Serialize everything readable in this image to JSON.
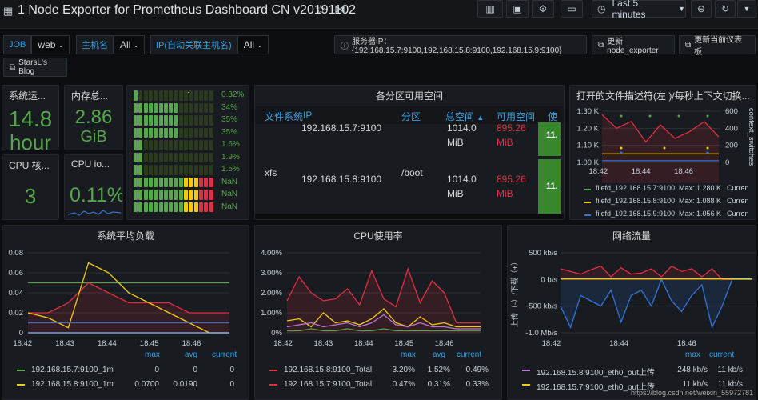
{
  "header": {
    "title": "1 Node Exporter for Prometheus Dashboard CN v20191102",
    "time_picker": "Last 5 minutes"
  },
  "variables": [
    {
      "label": "JOB",
      "value": "web"
    },
    {
      "label": "主机名",
      "value": "All"
    },
    {
      "label": "IP(自动关联主机名)",
      "value": "All"
    }
  ],
  "links": {
    "server_ip": "服务器IP：{192.168.15.7:9100,192.168.15.8:9100,192.168.15.9:9100}",
    "update_node_exporter": "更新node_exporter",
    "update_dashboard": "更新当前仪表板",
    "blog": "StarsL's Blog"
  },
  "stats": {
    "uptime": {
      "title": "系统运...",
      "value": "14.8",
      "unit": "hour"
    },
    "memory": {
      "title": "内存总...",
      "value": "2.86",
      "unit": "GiB"
    },
    "cpu_cores": {
      "title": "CPU 核...",
      "value": "3"
    },
    "cpu_iowait": {
      "title": "CPU io...",
      "value": "0.11%"
    }
  },
  "bargauge": {
    "labels": [
      "0.32%",
      "34%",
      "35%",
      "35%",
      "1.6%",
      "1.9%",
      "1.5%",
      "NaN",
      "NaN",
      "NaN"
    ],
    "fills": [
      0.05,
      0.55,
      0.55,
      0.55,
      0.1,
      0.12,
      0.1,
      1.0,
      1.0,
      1.0
    ]
  },
  "disk_table": {
    "title": "各分区可用空间",
    "columns": [
      "文件系统",
      "IP",
      "分区",
      "总空间",
      "可用空间",
      "使"
    ],
    "rows": [
      {
        "fs": "",
        "ip": "192.168.15.7:9100",
        "mount": "",
        "total": "1014.0",
        "total_unit": "MiB",
        "avail": "895.26",
        "avail_unit": "MiB",
        "usage": "11."
      },
      {
        "fs": "xfs",
        "ip": "192.168.15.8:9100",
        "mount": "/boot",
        "total": "1014.0",
        "total_unit": "MiB",
        "avail": "895.26",
        "avail_unit": "MiB",
        "usage": "11."
      }
    ]
  },
  "fd_panel": {
    "title": "打开的文件描述符(左 )/每秒上下文切换...",
    "y_left": [
      "1.30 K",
      "1.20 K",
      "1.10 K",
      "1.00 K"
    ],
    "y_right": [
      "600",
      "400",
      "200",
      "0"
    ],
    "x_ticks": [
      "18:42",
      "18:44",
      "18:46"
    ],
    "right_axis_label": "context_switches",
    "legend": [
      {
        "name": "filefd_192.168.15.7:9100",
        "max": "Max: 1.280 K",
        "cur": "Curren",
        "color": "#56a64b"
      },
      {
        "name": "filefd_192.168.15.8:9100",
        "max": "Max: 1.088 K",
        "cur": "Curren",
        "color": "#f2cc0c"
      },
      {
        "name": "filefd_192.168.15.9:9100",
        "max": "Max: 1.056 K",
        "cur": "Curren",
        "color": "#3274d9"
      }
    ],
    "chart_data": {
      "type": "line",
      "series": [
        {
          "values": [
            1.28,
            1.2,
            1.24,
            1.12,
            1.22,
            1.14,
            1.18,
            1.24,
            1.15
          ]
        },
        {
          "values": [
            1.05,
            1.05,
            1.05,
            1.05,
            1.05,
            1.05,
            1.05,
            1.05,
            1.05
          ]
        },
        {
          "values": [
            1.01,
            1.01,
            1.01,
            1.01,
            1.01,
            1.01,
            1.01,
            1.01,
            1.01
          ]
        }
      ],
      "ylim": [
        1.0,
        1.3
      ]
    }
  },
  "load_panel": {
    "title": "系统平均负载",
    "y_ticks": [
      "0.08",
      "0.06",
      "0.04",
      "0.02",
      "0"
    ],
    "x_ticks": [
      "18:42",
      "18:43",
      "18:44",
      "18:45",
      "18:46"
    ],
    "legend_headers": [
      "max",
      "avg",
      "current"
    ],
    "legend": [
      {
        "name": "192.168.15.7:9100_1m",
        "max": "0",
        "avg": "0",
        "cur": "0",
        "color": "#56a64b"
      },
      {
        "name": "192.168.15.8:9100_1m",
        "max": "0.0700",
        "avg": "0.0190",
        "cur": "0",
        "color": "#f2cc0c"
      }
    ],
    "chart_data": {
      "type": "line",
      "ylim": [
        0,
        0.08
      ],
      "series": [
        {
          "color": "#56a64b",
          "values": [
            0.05,
            0.05,
            0.05,
            0.05,
            0.05,
            0.05,
            0.05,
            0.05,
            0.05,
            0.05,
            0.05
          ]
        },
        {
          "color": "#e02f44",
          "values": [
            0.02,
            0.02,
            0.03,
            0.05,
            0.04,
            0.03,
            0.03,
            0.03,
            0.02,
            0.02,
            0.02
          ]
        },
        {
          "color": "#f2cc0c",
          "values": [
            0.02,
            0.015,
            0.005,
            0.07,
            0.06,
            0.04,
            0.03,
            0.02,
            0.01,
            0,
            0
          ]
        },
        {
          "color": "#3274d9",
          "values": [
            0.01,
            0.01,
            0.01,
            0.01,
            0.01,
            0.01,
            0.01,
            0.01,
            0.01,
            0.01,
            0.01
          ]
        },
        {
          "color": "#8ab8ff",
          "values": [
            0,
            0,
            0,
            0,
            0,
            0,
            0,
            0,
            0,
            0,
            0
          ]
        }
      ]
    }
  },
  "cpu_panel": {
    "title": "CPU使用率",
    "y_ticks": [
      "4.00%",
      "3.00%",
      "2.00%",
      "1.00%",
      "0%"
    ],
    "x_ticks": [
      "18:42",
      "18:43",
      "18:44",
      "18:45",
      "18:46"
    ],
    "legend_headers": [
      "max",
      "avg",
      "current"
    ],
    "legend": [
      {
        "name": "192.168.15.8:9100_Total",
        "max": "3.20%",
        "avg": "1.52%",
        "cur": "0.49%",
        "color": "#e02f44"
      },
      {
        "name": "192.168.15.7:9100_Total",
        "max": "0.47%",
        "avg": "0.31%",
        "cur": "0.33%",
        "color": "#e02f44"
      }
    ],
    "chart_data": {
      "type": "line",
      "ylim": [
        0,
        4
      ],
      "series": [
        {
          "color": "#e02f44",
          "values": [
            1.6,
            2.8,
            2.0,
            1.6,
            1.7,
            2.2,
            1.4,
            3.1,
            1.7,
            1.3,
            3.2,
            1.5,
            2.6,
            2.0,
            0.5,
            0.5,
            0.5
          ]
        },
        {
          "color": "#f2cc0c",
          "values": [
            0.6,
            0.7,
            0.3,
            1.0,
            0.5,
            0.6,
            0.4,
            0.7,
            1.2,
            0.5,
            0.3,
            0.8,
            0.4,
            0.5,
            0.3,
            0.3,
            0.3
          ]
        },
        {
          "color": "#b877d9",
          "values": [
            0.3,
            0.4,
            0.5,
            0.3,
            0.4,
            0.5,
            0.3,
            0.5,
            0.9,
            0.4,
            0.3,
            0.5,
            0.3,
            0.3,
            0.2,
            0.2,
            0.2
          ]
        },
        {
          "color": "#56a64b",
          "values": [
            0.1,
            0.1,
            0.2,
            0.1,
            0.1,
            0.2,
            0.1,
            0.1,
            0.2,
            0.1,
            0.1,
            0.1,
            0.1,
            0.1,
            0.1,
            0.1,
            0.1
          ]
        }
      ]
    }
  },
  "net_panel": {
    "title": "网络流量",
    "y_ticks": [
      "500 kb/s",
      "0 b/s",
      "-500 kb/s",
      "-1.0 Mb/s"
    ],
    "x_ticks": [
      "18:42",
      "18:44",
      "18:46"
    ],
    "y_axis_label": "上传（-）/下载（+）",
    "legend_headers": [
      "max",
      "current"
    ],
    "legend": [
      {
        "name": "192.168.15.8:9100_eth0_out上传",
        "max": "248 kb/s",
        "cur": "11 kb/s",
        "color": "#b877d9"
      },
      {
        "name": "192.168.15.7:9100_eth0_out上传",
        "max": "11 kb/s",
        "cur": "11 kb/s",
        "color": "#f2cc0c"
      }
    ],
    "watermark": "https://blog.csdn.net/weixin_55972781",
    "chart_data": {
      "type": "line",
      "ylim": [
        -1.0,
        0.5
      ],
      "series": [
        {
          "color": "#e02f44",
          "values": [
            0.2,
            0.15,
            0.1,
            0.18,
            0.25,
            0.05,
            0.22,
            0.1,
            0.12,
            0.2,
            0.05,
            0.25,
            0.15,
            0.2,
            0.05,
            0.2,
            0.0,
            0.0,
            0.0,
            0.0
          ]
        },
        {
          "color": "#3274d9",
          "values": [
            -0.5,
            -0.9,
            -0.3,
            -0.4,
            -0.5,
            -0.2,
            -0.8,
            -0.3,
            -0.2,
            -0.5,
            0.0,
            -0.4,
            -0.6,
            -0.3,
            -0.1,
            -0.9,
            -0.5,
            0.0,
            0.0,
            0.0
          ]
        },
        {
          "color": "#f2cc0c",
          "values": [
            0.01,
            0.01,
            0.01,
            0.01,
            0.01,
            0.01,
            0.01,
            0.01,
            0.01,
            0.01,
            0.01,
            0.01,
            0.01,
            0.01,
            0.01,
            0.01,
            0.01,
            0.01,
            0.01,
            0.01
          ]
        }
      ]
    }
  }
}
